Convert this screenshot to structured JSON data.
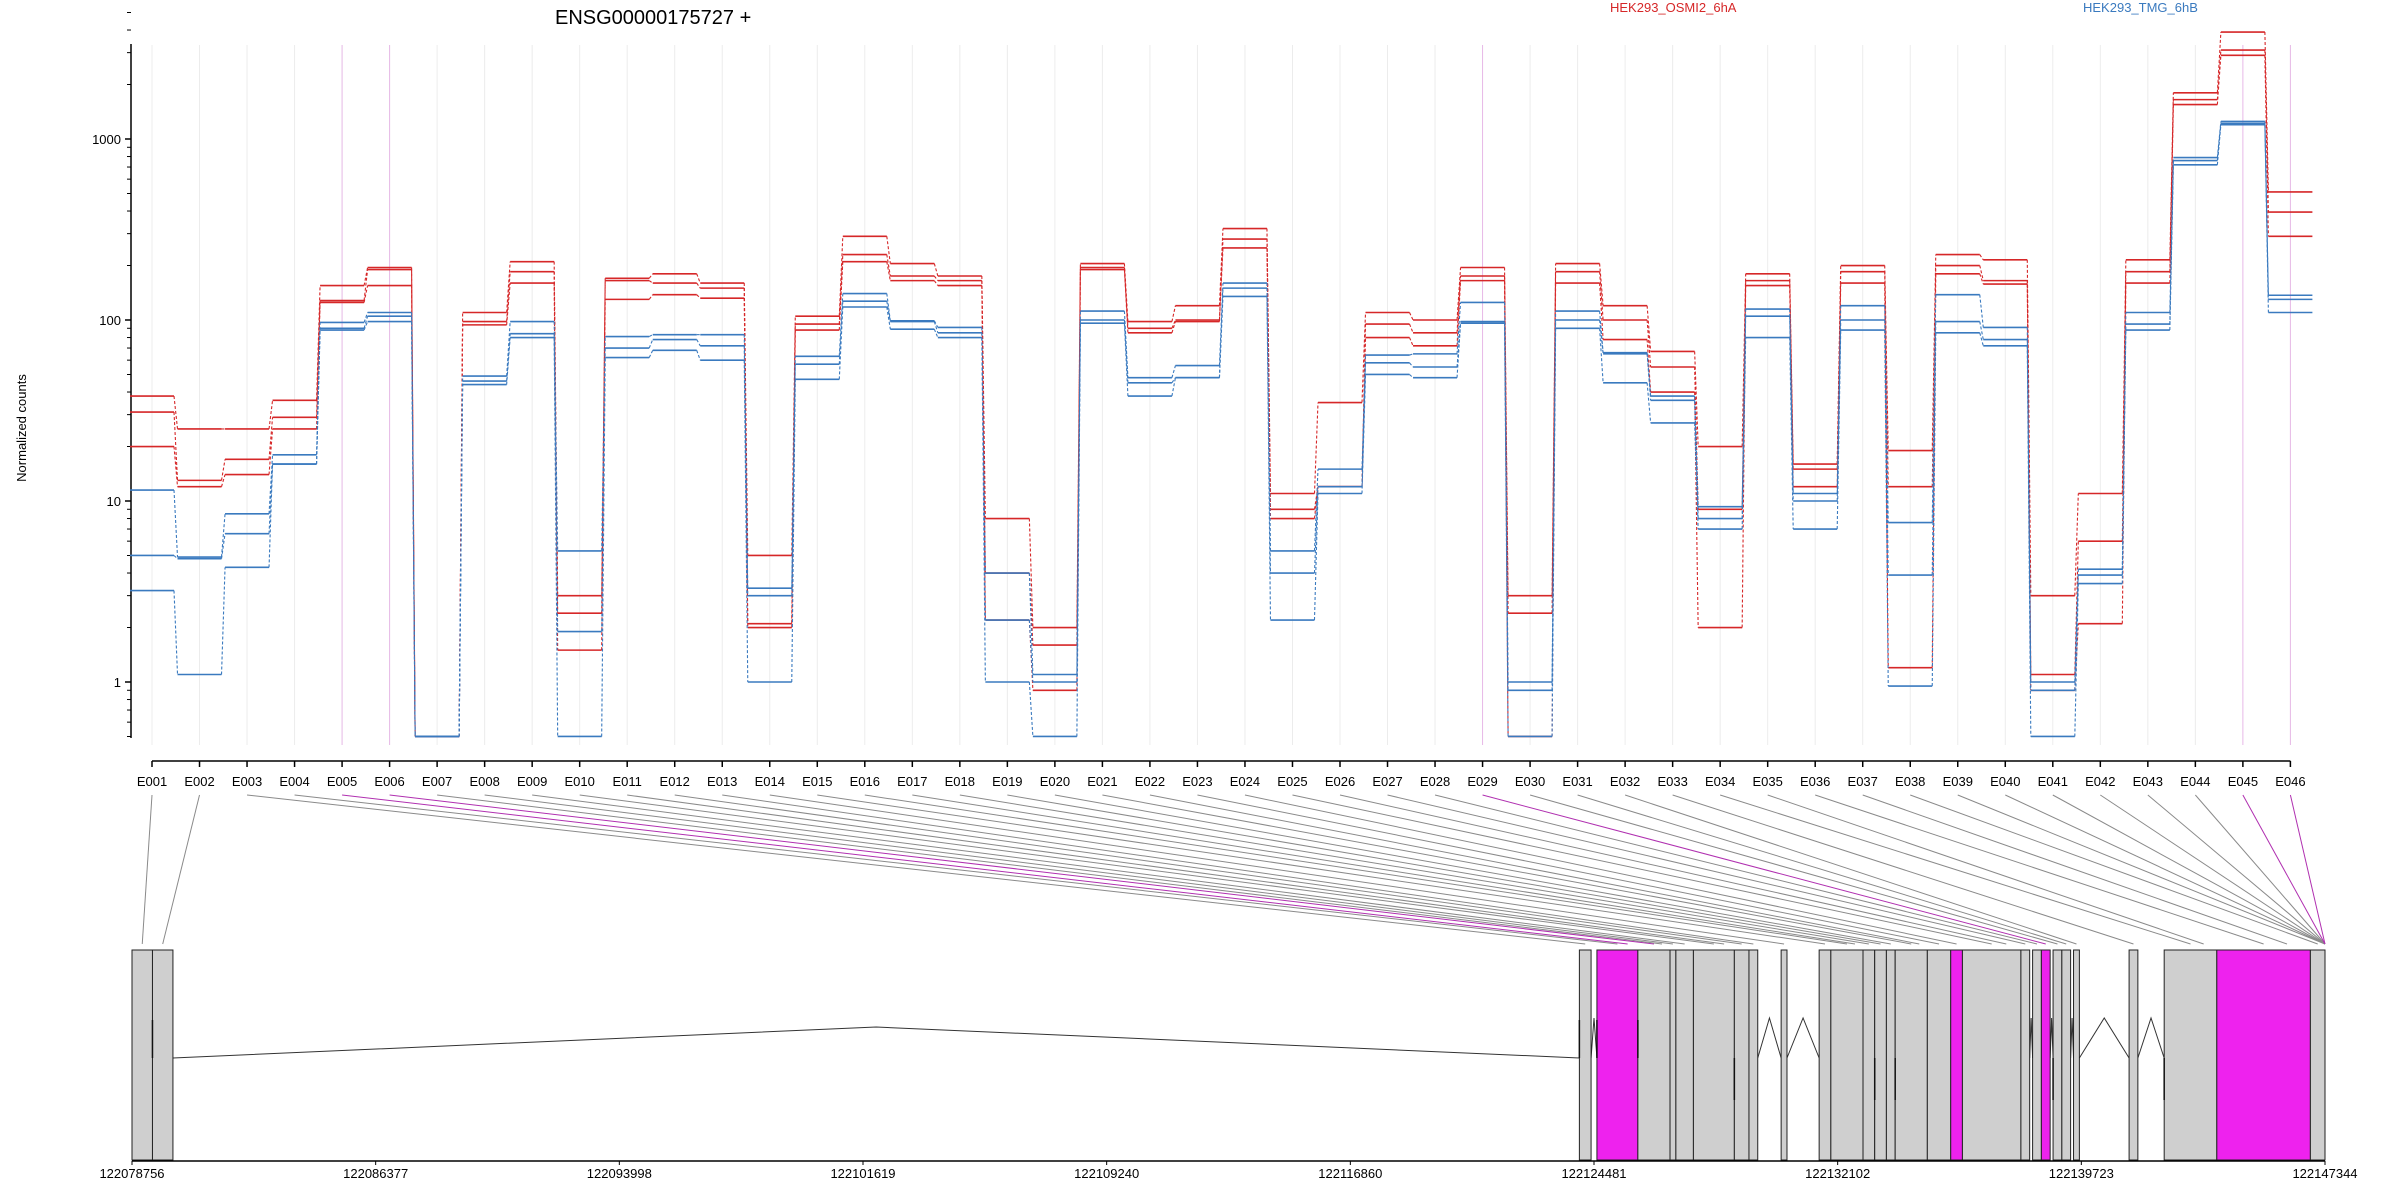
{
  "header": {
    "gene_title": "ENSG00000175727 +",
    "legend": [
      {
        "label": "HEK293_OSMI2_6hA",
        "color": "#d62728"
      },
      {
        "label": "HEK293_TMG_6hB",
        "color": "#3a7abf"
      }
    ]
  },
  "colors": {
    "condition_a": "#d62728",
    "condition_b": "#3a7abf",
    "highlight": "#ee22ee",
    "exon_fill": "#cfcfcf"
  },
  "chart_data": {
    "type": "line",
    "ylabel": "Normalized counts",
    "yscale": "log",
    "ylim": [
      0.5,
      5000
    ],
    "yticks": [
      1,
      10,
      100,
      1000
    ],
    "categories": [
      "E001",
      "E002",
      "E003",
      "E004",
      "E005",
      "E006",
      "E007",
      "E008",
      "E009",
      "E010",
      "E011",
      "E012",
      "E013",
      "E014",
      "E015",
      "E016",
      "E017",
      "E018",
      "E019",
      "E020",
      "E021",
      "E022",
      "E023",
      "E024",
      "E025",
      "E026",
      "E027",
      "E028",
      "E029",
      "E030",
      "E031",
      "E032",
      "E033",
      "E034",
      "E035",
      "E036",
      "E037",
      "E038",
      "E039",
      "E040",
      "E041",
      "E042",
      "E043",
      "E044",
      "E045",
      "E046"
    ],
    "highlighted_bins": [
      "E005",
      "E006",
      "E029",
      "E045",
      "E046"
    ],
    "series": [
      {
        "group": "HEK293_OSMI2_6hA",
        "values": [
          38,
          25,
          25,
          36,
          155,
          195,
          0.5,
          110,
          210,
          3,
          170,
          180,
          160,
          5,
          105,
          290,
          205,
          175,
          8,
          2,
          205,
          98,
          120,
          320,
          11,
          35,
          110,
          100,
          195,
          3,
          205,
          120,
          67,
          20,
          180,
          16,
          200,
          19,
          230,
          215,
          3,
          11,
          215,
          1800,
          3900,
          510
        ]
      },
      {
        "group": "HEK293_OSMI2_6hA",
        "values": [
          31,
          13,
          17,
          29,
          128,
          190,
          0.5,
          98,
          185,
          2.4,
          165,
          160,
          150,
          2.1,
          95,
          230,
          175,
          165,
          4,
          1.6,
          195,
          90,
          100,
          280,
          9,
          12,
          95,
          85,
          175,
          2.4,
          185,
          100,
          55,
          9,
          165,
          15,
          185,
          12,
          200,
          165,
          1.1,
          6,
          185,
          1650,
          3100,
          395
        ]
      },
      {
        "group": "HEK293_OSMI2_6hA",
        "values": [
          20,
          12,
          14,
          25,
          125,
          155,
          0.5,
          94,
          160,
          1.5,
          130,
          138,
          132,
          2,
          88,
          210,
          165,
          155,
          2.2,
          0.9,
          190,
          85,
          98,
          250,
          8,
          12,
          80,
          72,
          165,
          0.5,
          160,
          78,
          40,
          2,
          155,
          12,
          160,
          1.2,
          180,
          158,
          0.9,
          2.1,
          160,
          1550,
          2900,
          290
        ]
      },
      {
        "group": "HEK293_TMG_6hB",
        "values": [
          11.5,
          4.9,
          8.5,
          18,
          97,
          110,
          0.5,
          49,
          98,
          5.3,
          81,
          83,
          83,
          3.3,
          63,
          140,
          99,
          91,
          4,
          1.1,
          112,
          48,
          56,
          160,
          5.3,
          15,
          64,
          65,
          125,
          1,
          112,
          66,
          38,
          9.3,
          115,
          11,
          120,
          7.6,
          138,
          91,
          1,
          4.2,
          110,
          790,
          1250,
          137
        ]
      },
      {
        "group": "HEK293_TMG_6hB",
        "values": [
          5,
          4.8,
          6.6,
          16,
          90,
          105,
          0.5,
          46,
          84,
          1.9,
          70,
          78,
          72,
          3,
          57,
          127,
          98,
          85,
          2.2,
          1,
          100,
          45,
          48,
          150,
          4,
          12,
          58,
          55,
          98,
          0.9,
          100,
          65,
          36,
          8,
          105,
          10,
          100,
          3.9,
          98,
          78,
          0.9,
          3.9,
          95,
          760,
          1220,
          130
        ]
      },
      {
        "group": "HEK293_TMG_6hB",
        "values": [
          3.2,
          1.1,
          4.3,
          16,
          88,
          98,
          0.5,
          44,
          80,
          0.5,
          62,
          68,
          60,
          1,
          47,
          118,
          89,
          80,
          1,
          0.5,
          96,
          38,
          48,
          135,
          2.2,
          11,
          50,
          48,
          96,
          0.5,
          90,
          45,
          27,
          7,
          80,
          7,
          88,
          0.95,
          85,
          72,
          0.5,
          3.5,
          88,
          720,
          1200,
          110
        ]
      }
    ],
    "genomic_axis": {
      "tick_labels": [
        "122078756",
        "122086377",
        "122093998",
        "122101619",
        "122109240",
        "122116860",
        "122124481",
        "122132102",
        "122139723",
        "122147344"
      ]
    },
    "exons": [
      [
        0,
        0.7
      ],
      [
        0.7,
        1.4
      ],
      [
        49.5,
        49.9
      ],
      [
        50.1,
        51.5
      ],
      [
        51.5,
        52.6
      ],
      [
        52.6,
        52.8
      ],
      [
        52.8,
        53.4
      ],
      [
        53.4,
        54.8
      ],
      [
        54.8,
        55.3
      ],
      [
        55.3,
        55.6
      ],
      [
        56.4,
        56.6
      ],
      [
        57.7,
        58.1
      ],
      [
        58.1,
        59.2
      ],
      [
        59.2,
        59.6
      ],
      [
        59.6,
        60.0
      ],
      [
        60.0,
        60.3
      ],
      [
        60.3,
        61.4
      ],
      [
        61.4,
        62.2
      ],
      [
        62.2,
        62.6
      ],
      [
        62.6,
        64.6
      ],
      [
        64.6,
        64.9
      ],
      [
        65.0,
        65.3
      ],
      [
        65.3,
        65.6
      ],
      [
        65.7,
        66.0
      ],
      [
        66.0,
        66.3
      ],
      [
        66.4,
        66.6
      ],
      [
        68.3,
        68.6
      ],
      [
        69.5,
        71.3
      ],
      [
        71.3,
        74.5
      ],
      [
        74.5,
        75.0
      ]
    ],
    "highlighted_exons": [
      3,
      18,
      22,
      28
    ],
    "exon_lines_up": [
      1,
      2,
      3,
      4
    ],
    "exon_lines_down": [
      8,
      14,
      16,
      23,
      27
    ]
  }
}
